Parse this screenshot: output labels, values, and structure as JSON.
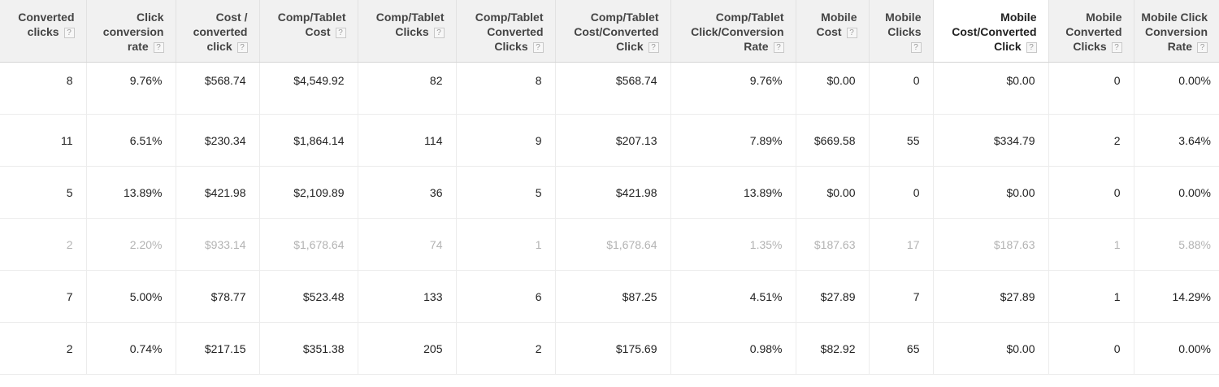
{
  "columns": [
    {
      "label": "Converted clicks",
      "help": "?",
      "sorted": false
    },
    {
      "label": "Click conversion rate",
      "help": "?",
      "sorted": false
    },
    {
      "label": "Cost / converted click",
      "help": "?",
      "sorted": false
    },
    {
      "label": "Comp/Tablet Cost",
      "help": "?",
      "sorted": false
    },
    {
      "label": "Comp/Tablet Clicks",
      "help": "?",
      "sorted": false
    },
    {
      "label": "Comp/Tablet Converted Clicks",
      "help": "?",
      "sorted": false
    },
    {
      "label": "Comp/Tablet Cost/Converted Click",
      "help": "?",
      "sorted": false
    },
    {
      "label": "Comp/Tablet Click/Conversion Rate",
      "help": "?",
      "sorted": false
    },
    {
      "label": "Mobile Cost",
      "help": "?",
      "sorted": false
    },
    {
      "label": "Mobile Clicks",
      "help": "?",
      "sorted": false
    },
    {
      "label": "Mobile Cost/Converted Click",
      "help": "?",
      "sorted": true
    },
    {
      "label": "Mobile Converted Clicks",
      "help": "?",
      "sorted": false
    },
    {
      "label": "Mobile Click Conversion Rate",
      "help": "?",
      "sorted": false
    }
  ],
  "rows": [
    {
      "dimmed": false,
      "cells": [
        "8",
        "9.76%",
        "$568.74",
        "$4,549.92",
        "82",
        "8",
        "$568.74",
        "9.76%",
        "$0.00",
        "0",
        "$0.00",
        "0",
        "0.00%"
      ]
    },
    {
      "dimmed": false,
      "cells": [
        "11",
        "6.51%",
        "$230.34",
        "$1,864.14",
        "114",
        "9",
        "$207.13",
        "7.89%",
        "$669.58",
        "55",
        "$334.79",
        "2",
        "3.64%"
      ]
    },
    {
      "dimmed": false,
      "cells": [
        "5",
        "13.89%",
        "$421.98",
        "$2,109.89",
        "36",
        "5",
        "$421.98",
        "13.89%",
        "$0.00",
        "0",
        "$0.00",
        "0",
        "0.00%"
      ]
    },
    {
      "dimmed": true,
      "cells": [
        "2",
        "2.20%",
        "$933.14",
        "$1,678.64",
        "74",
        "1",
        "$1,678.64",
        "1.35%",
        "$187.63",
        "17",
        "$187.63",
        "1",
        "5.88%"
      ]
    },
    {
      "dimmed": false,
      "cells": [
        "7",
        "5.00%",
        "$78.77",
        "$523.48",
        "133",
        "6",
        "$87.25",
        "4.51%",
        "$27.89",
        "7",
        "$27.89",
        "1",
        "14.29%"
      ]
    },
    {
      "dimmed": false,
      "cells": [
        "2",
        "0.74%",
        "$217.15",
        "$351.38",
        "205",
        "2",
        "$175.69",
        "0.98%",
        "$82.92",
        "65",
        "$0.00",
        "0",
        "0.00%"
      ]
    }
  ]
}
